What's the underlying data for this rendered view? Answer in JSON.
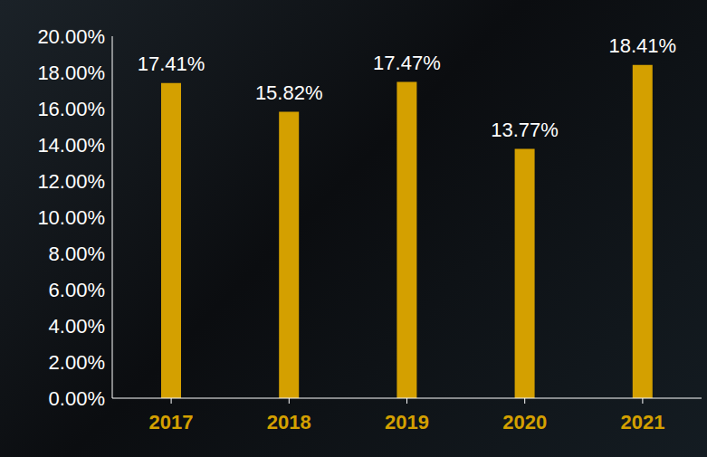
{
  "chart_data": {
    "type": "bar",
    "categories": [
      "2017",
      "2018",
      "2019",
      "2020",
      "2021"
    ],
    "values": [
      17.41,
      15.82,
      17.47,
      13.77,
      18.41
    ],
    "value_labels": [
      "17.41%",
      "15.82%",
      "17.47%",
      "13.77%",
      "18.41%"
    ],
    "color": "#d4a000",
    "ylim": [
      0,
      20
    ],
    "yticks": [
      {
        "value": 0,
        "label": "0.00%"
      },
      {
        "value": 2,
        "label": "2.00%"
      },
      {
        "value": 4,
        "label": "4.00%"
      },
      {
        "value": 6,
        "label": "6.00%"
      },
      {
        "value": 8,
        "label": "8.00%"
      },
      {
        "value": 10,
        "label": "10.00%"
      },
      {
        "value": 12,
        "label": "12.00%"
      },
      {
        "value": 14,
        "label": "14.00%"
      },
      {
        "value": 16,
        "label": "16.00%"
      },
      {
        "value": 18,
        "label": "18.00%"
      },
      {
        "value": 20,
        "label": "20.00%"
      }
    ],
    "grid": false,
    "data_labels": true
  }
}
